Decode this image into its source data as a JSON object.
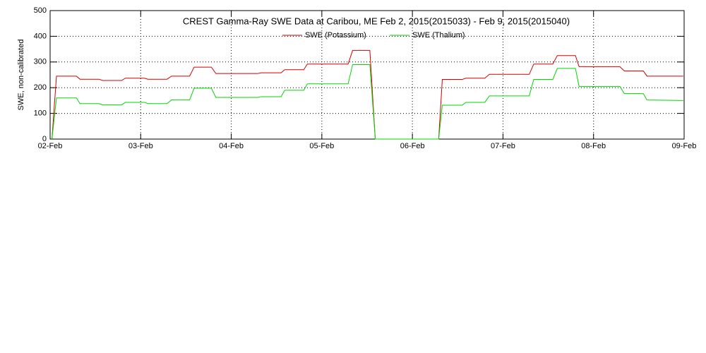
{
  "chart_data": {
    "type": "line",
    "title": "CREST Gamma-Ray SWE Data at Caribou, ME   Feb  2, 2015(2015033) - Feb  9, 2015(2015040)",
    "y_label": "SWE, non-calibrated",
    "x": [
      2.02,
      2.07,
      2.29,
      2.33,
      2.54,
      2.58,
      2.79,
      2.83,
      3.04,
      3.08,
      3.29,
      3.34,
      3.54,
      3.59,
      3.78,
      3.83,
      4.29,
      4.33,
      4.55,
      4.59,
      4.8,
      4.84,
      5.29,
      5.34,
      5.53,
      5.59,
      6.29,
      6.33,
      6.55,
      6.59,
      6.8,
      6.85,
      7.29,
      7.34,
      7.55,
      7.6,
      7.8,
      7.84,
      8.29,
      8.34,
      8.55,
      8.59,
      8.99
    ],
    "series": [
      {
        "name": "SWE (Potassium)",
        "color": "#d40000",
        "values": [
          0,
          245,
          245,
          233,
          233,
          228,
          228,
          237,
          237,
          233,
          233,
          245,
          245,
          280,
          280,
          255,
          255,
          258,
          258,
          270,
          270,
          292,
          292,
          345,
          345,
          0,
          0,
          232,
          232,
          237,
          237,
          252,
          252,
          292,
          292,
          325,
          325,
          282,
          282,
          265,
          265,
          245,
          245
        ]
      },
      {
        "name": "SWE (Thalium)",
        "color": "#00d800",
        "values": [
          0,
          160,
          160,
          138,
          138,
          133,
          133,
          143,
          143,
          138,
          138,
          152,
          152,
          198,
          198,
          162,
          162,
          165,
          165,
          190,
          190,
          215,
          215,
          290,
          290,
          0,
          0,
          132,
          132,
          143,
          143,
          168,
          168,
          232,
          232,
          275,
          275,
          205,
          205,
          177,
          177,
          152,
          150
        ]
      }
    ],
    "xlim": [
      2,
      9
    ],
    "xticks": [
      {
        "value": 2,
        "label": "02-Feb"
      },
      {
        "value": 3,
        "label": "03-Feb"
      },
      {
        "value": 4,
        "label": "04-Feb"
      },
      {
        "value": 5,
        "label": "05-Feb"
      },
      {
        "value": 6,
        "label": "06-Feb"
      },
      {
        "value": 7,
        "label": "07-Feb"
      },
      {
        "value": 8,
        "label": "08-Feb"
      },
      {
        "value": 9,
        "label": "09-Feb"
      }
    ],
    "ylim": [
      0,
      500
    ],
    "yticks": [
      0,
      100,
      200,
      300,
      400,
      500
    ],
    "grid": true,
    "legend": "top"
  }
}
